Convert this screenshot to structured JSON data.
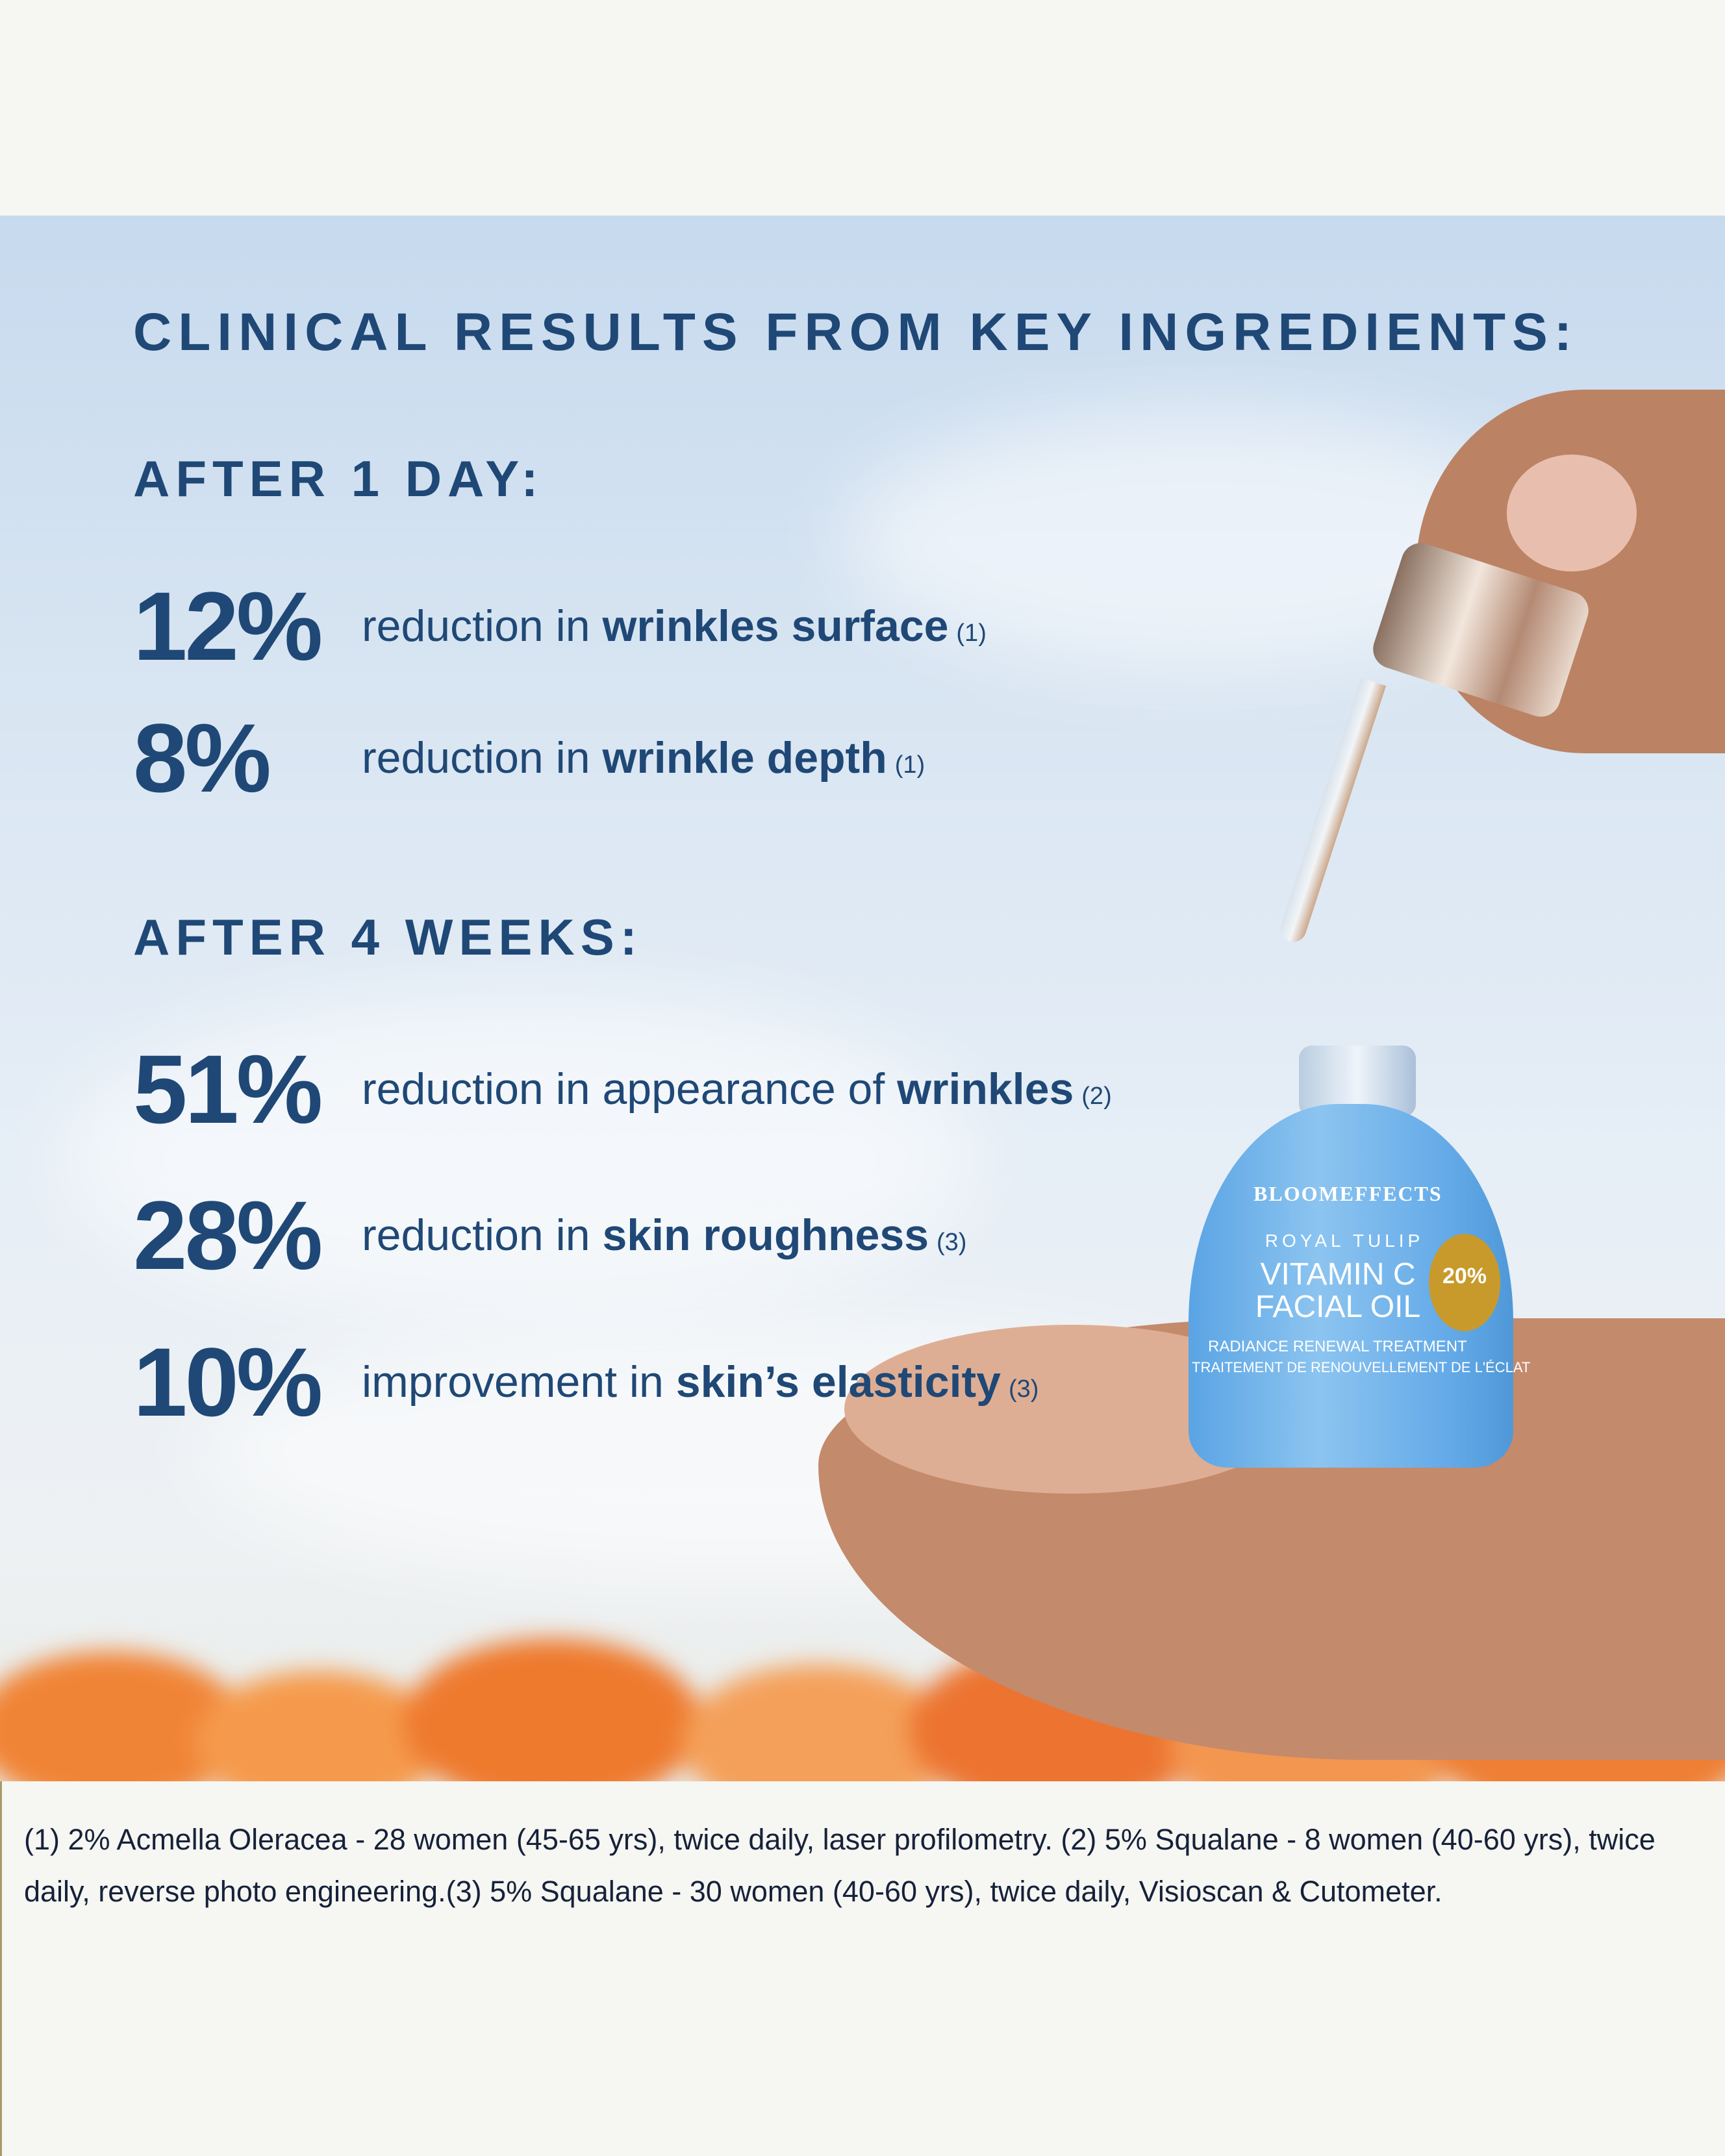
{
  "title": "CLINICAL RESULTS FROM KEY INGREDIENTS:",
  "sections": [
    {
      "heading": "AFTER 1 DAY:",
      "stats": [
        {
          "value": "12%",
          "prefix": "reduction in ",
          "bold": "wrinkles surface",
          "ref": "(1)"
        },
        {
          "value": "8%",
          "prefix": "reduction in ",
          "bold": "wrinkle depth",
          "ref": "(1)"
        }
      ]
    },
    {
      "heading": "AFTER 4 WEEKS:",
      "stats": [
        {
          "value": "51%",
          "prefix": "reduction in appearance of ",
          "bold": "wrinkles",
          "ref": "(2)"
        },
        {
          "value": "28%",
          "prefix": "reduction in ",
          "bold": "skin roughness",
          "ref": "(3)"
        },
        {
          "value": "10%",
          "prefix": "improvement in ",
          "bold": "skin’s elasticity",
          "ref": "(3)"
        }
      ]
    }
  ],
  "product": {
    "brand": "BLOOMEFFECTS",
    "line": "ROYAL TULIP",
    "name_1": "VITAMIN C",
    "name_2": "FACIAL OIL",
    "badge": "20%",
    "subtitle_en": "RADIANCE RENEWAL TREATMENT",
    "subtitle_fr": "TRAITEMENT DE RENOUVELLEMENT DE L'ÉCLAT"
  },
  "footnote": "(1) 2% Acmella Oleracea - 28 women (45-65 yrs), twice daily, laser profilometry. (2) 5% Squalane - 8 women (40-60 yrs), twice daily, reverse photo engineering.(3) 5% Squalane - 30 women (40-60 yrs), twice daily, Visioscan & Cutometer.",
  "colors": {
    "text": "#1f4876",
    "background": "#f6f6f2",
    "sky": "#c7daee",
    "bottle": "#6aaee8",
    "flowers": "#f08a3c"
  }
}
